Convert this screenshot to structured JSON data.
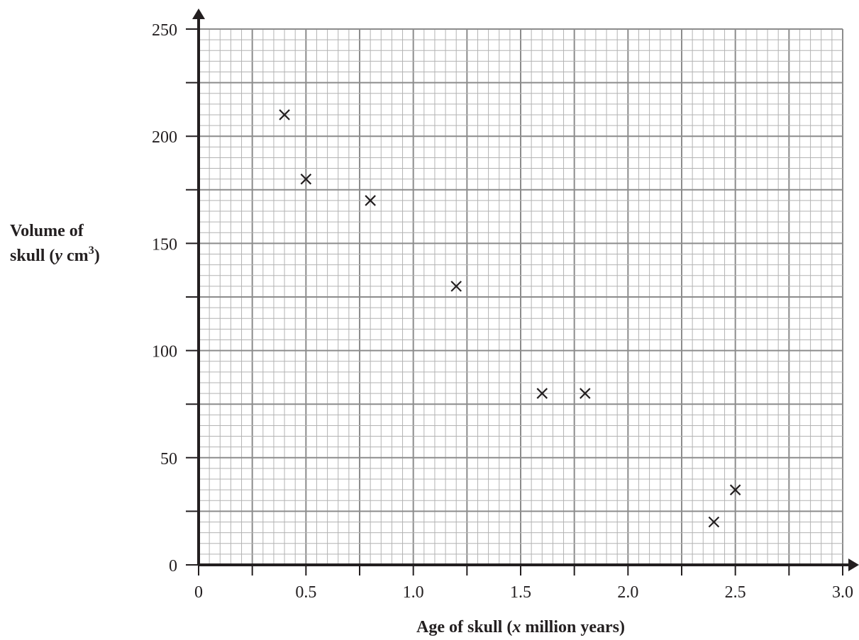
{
  "chart_data": {
    "type": "scatter",
    "title": "",
    "xlabel": {
      "pre": "Age of skull (",
      "var": "x",
      "post": " million years)"
    },
    "ylabel": {
      "line1": "Volume of",
      "line2_pre": "skull (",
      "line2_var": "y",
      "line2_unit": " cm",
      "line2_sup": "3",
      "line2_post": ")"
    },
    "xlim": [
      0,
      3.0
    ],
    "ylim": [
      0,
      250
    ],
    "x_ticks": [
      "0",
      "0.5",
      "1.0",
      "1.5",
      "2.0",
      "2.5",
      "3.0"
    ],
    "x_tick_values": [
      0,
      0.5,
      1.0,
      1.5,
      2.0,
      2.5,
      3.0
    ],
    "y_ticks": [
      "0",
      "50",
      "100",
      "150",
      "200",
      "250"
    ],
    "y_tick_values": [
      0,
      50,
      100,
      150,
      200,
      250
    ],
    "grid": true,
    "marker": "x",
    "points": [
      {
        "x": 0.4,
        "y": 210
      },
      {
        "x": 0.5,
        "y": 180
      },
      {
        "x": 0.8,
        "y": 170
      },
      {
        "x": 1.2,
        "y": 130
      },
      {
        "x": 1.6,
        "y": 80
      },
      {
        "x": 1.8,
        "y": 80
      },
      {
        "x": 2.4,
        "y": 20
      },
      {
        "x": 2.5,
        "y": 35
      }
    ],
    "colors": {
      "ink": "#231f20",
      "grid_minor": "#b3b3b3",
      "grid_major": "#8c8c8c"
    }
  }
}
